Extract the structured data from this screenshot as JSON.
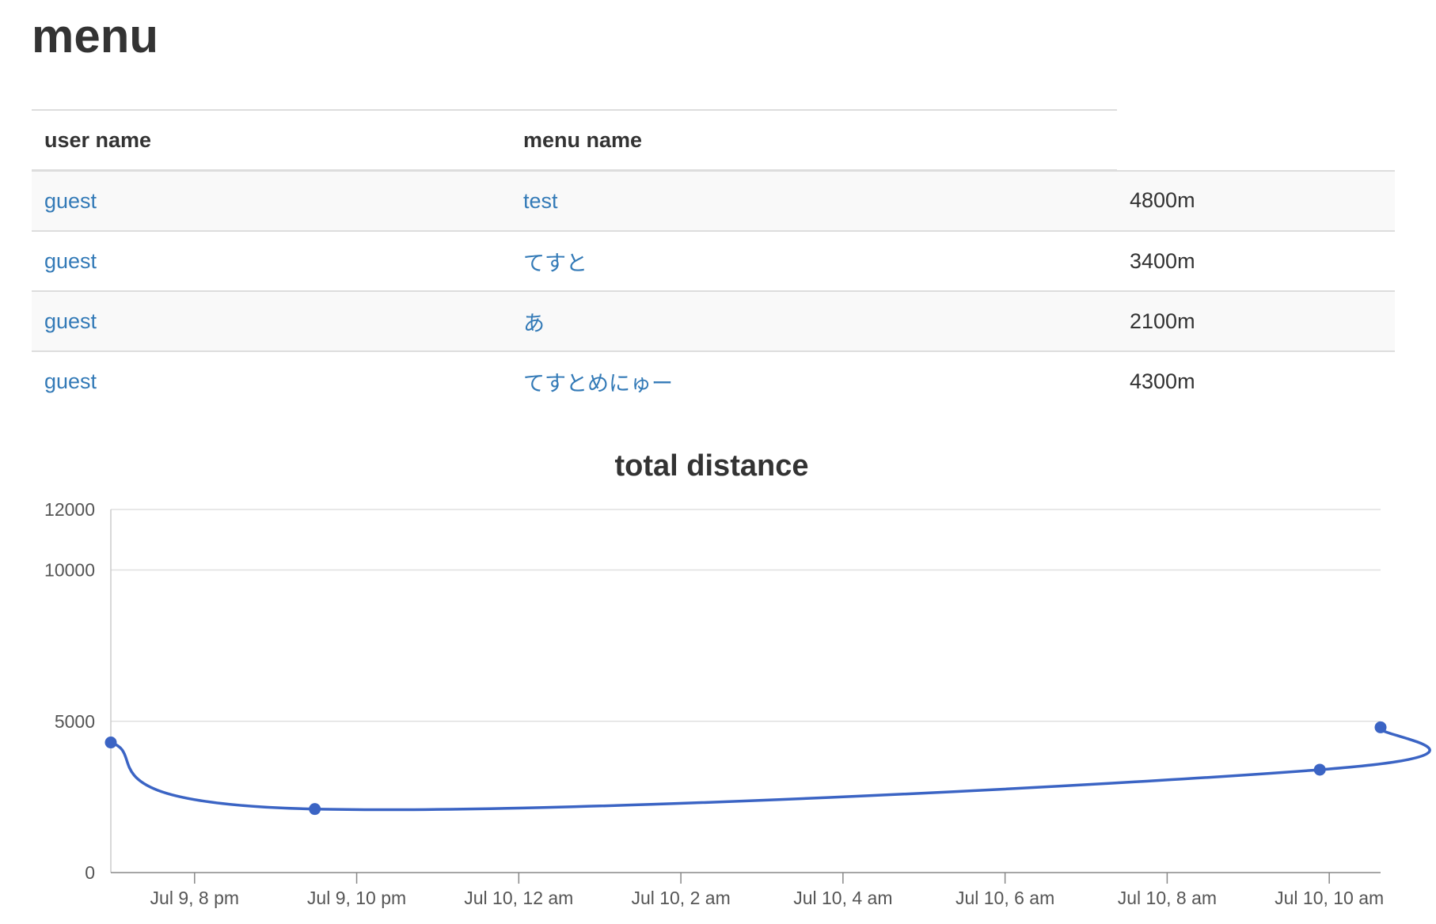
{
  "page": {
    "title": "menu"
  },
  "table": {
    "columns": [
      "user name",
      "menu name",
      ""
    ],
    "rows": [
      {
        "user": "guest",
        "menu": "test",
        "distance": "4800m"
      },
      {
        "user": "guest",
        "menu": "てすと",
        "distance": "3400m"
      },
      {
        "user": "guest",
        "menu": "あ",
        "distance": "2100m"
      },
      {
        "user": "guest",
        "menu": "てすとめにゅー",
        "distance": "4300m"
      }
    ]
  },
  "colors": {
    "line": "#3b64c4",
    "grid": "#e0e0e0",
    "link": "#337ab7"
  },
  "chart_data": {
    "type": "line",
    "title": "total distance",
    "xlabel": "",
    "ylabel": "",
    "ylim": [
      0,
      12000
    ],
    "yticks": [
      0,
      5000,
      10000,
      12000
    ],
    "xlim": [
      "2024-07-09T18:58",
      "2024-07-10T10:38"
    ],
    "xticks": [
      {
        "x": "2024-07-09T20:00",
        "label": "Jul 9, 8 pm"
      },
      {
        "x": "2024-07-09T22:00",
        "label": "Jul 9, 10 pm"
      },
      {
        "x": "2024-07-10T00:00",
        "label": "Jul 10, 12 am"
      },
      {
        "x": "2024-07-10T02:00",
        "label": "Jul 10, 2 am"
      },
      {
        "x": "2024-07-10T04:00",
        "label": "Jul 10, 4 am"
      },
      {
        "x": "2024-07-10T06:00",
        "label": "Jul 10, 6 am"
      },
      {
        "x": "2024-07-10T08:00",
        "label": "Jul 10, 8 am"
      },
      {
        "x": "2024-07-10T10:00",
        "label": "Jul 10, 10 am"
      }
    ],
    "series": [
      {
        "x": [
          "2024-07-09T18:58",
          "2024-07-09T21:29",
          "2024-07-10T09:53",
          "2024-07-10T10:38"
        ],
        "values": [
          4300,
          2100,
          3400,
          4800
        ]
      }
    ],
    "grid": true,
    "legend": "none"
  }
}
